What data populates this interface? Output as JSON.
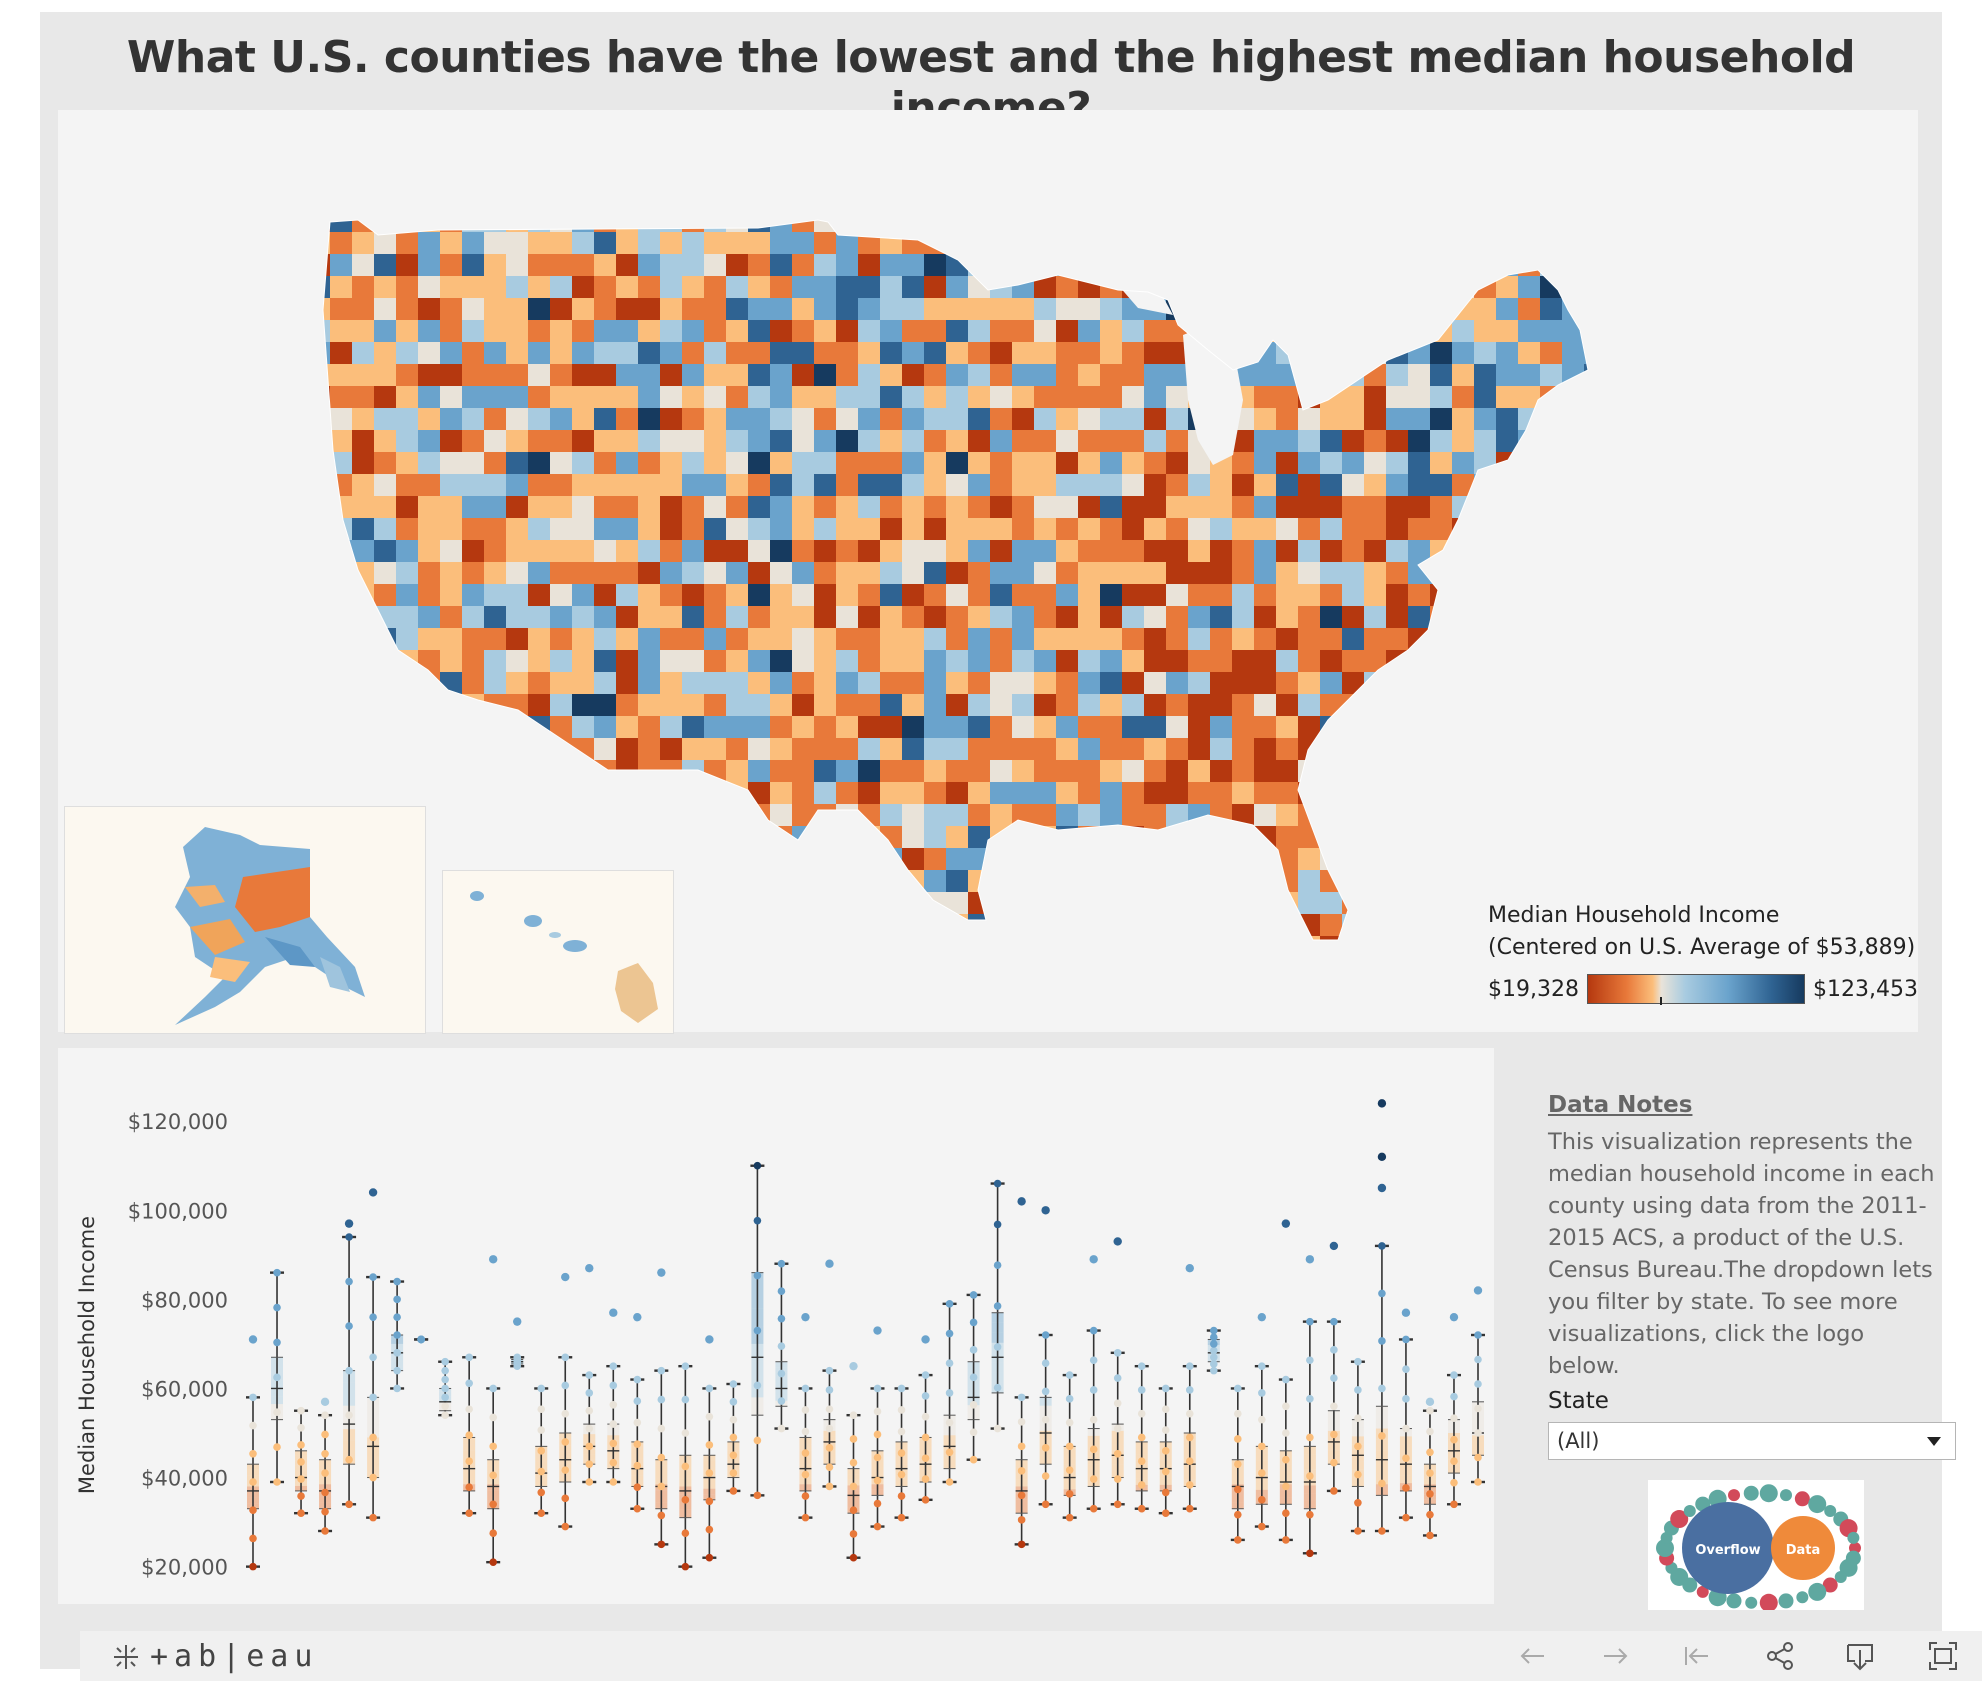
{
  "dashboard": {
    "title": "What U.S. counties have the lowest and the highest median household income?"
  },
  "legend": {
    "title_line1": "Median Household Income",
    "title_line2": "(Centered on U.S. Average of $53,889)",
    "min_label": "$19,328",
    "max_label": "$123,453",
    "colors": [
      "#b5380f",
      "#e8793a",
      "#fbbe7b",
      "#e9e3d9",
      "#a8cbe0",
      "#6aa3cc",
      "#2f6392",
      "#163a5f"
    ]
  },
  "chart_data": {
    "type": "boxplot",
    "ylabel": "Median Household Income",
    "ylim": [
      17000,
      127000
    ],
    "yticks": [
      20000,
      40000,
      60000,
      80000,
      100000,
      120000
    ],
    "ytick_labels": [
      "$20,000",
      "$40,000",
      "$60,000",
      "$80,000",
      "$100,000",
      "$120,000"
    ],
    "boxes": [
      {
        "min": 20000,
        "q1": 33000,
        "median": 37000,
        "q3": 43000,
        "max": 58000,
        "outliers": [
          71000
        ]
      },
      {
        "min": 39000,
        "q1": 53000,
        "median": 60000,
        "q3": 67000,
        "max": 86000,
        "outliers": []
      },
      {
        "min": 32000,
        "q1": 37000,
        "median": 40000,
        "q3": 46000,
        "max": 55000,
        "outliers": []
      },
      {
        "min": 28000,
        "q1": 33000,
        "median": 37000,
        "q3": 44000,
        "max": 54000,
        "outliers": [
          57000
        ]
      },
      {
        "min": 34000,
        "q1": 43000,
        "median": 52000,
        "q3": 64000,
        "max": 94000,
        "outliers": [
          97000
        ]
      },
      {
        "min": 31000,
        "q1": 40000,
        "median": 47000,
        "q3": 58000,
        "max": 85000,
        "outliers": [
          104000
        ]
      },
      {
        "min": 60000,
        "q1": 64000,
        "median": 68000,
        "q3": 72000,
        "max": 84000,
        "outliers": []
      },
      {
        "min": 71000,
        "q1": 71000,
        "median": 71000,
        "q3": 71000,
        "max": 71000,
        "outliers": []
      },
      {
        "min": 54000,
        "q1": 55000,
        "median": 57000,
        "q3": 60000,
        "max": 66000,
        "outliers": []
      },
      {
        "min": 32000,
        "q1": 37000,
        "median": 42000,
        "q3": 49000,
        "max": 67000,
        "outliers": []
      },
      {
        "min": 21000,
        "q1": 33000,
        "median": 38000,
        "q3": 44000,
        "max": 60000,
        "outliers": [
          89000
        ]
      },
      {
        "min": 65000,
        "q1": 65500,
        "median": 66000,
        "q3": 66500,
        "max": 67000,
        "outliers": [
          75000
        ]
      },
      {
        "min": 32000,
        "q1": 38000,
        "median": 41000,
        "q3": 47000,
        "max": 60000,
        "outliers": []
      },
      {
        "min": 29000,
        "q1": 39000,
        "median": 44000,
        "q3": 50000,
        "max": 67000,
        "outliers": [
          85000
        ]
      },
      {
        "min": 39000,
        "q1": 43000,
        "median": 47000,
        "q3": 52000,
        "max": 63000,
        "outliers": [
          87000
        ]
      },
      {
        "min": 39000,
        "q1": 42000,
        "median": 46000,
        "q3": 52000,
        "max": 65000,
        "outliers": [
          77000
        ]
      },
      {
        "min": 33000,
        "q1": 38000,
        "median": 42000,
        "q3": 48000,
        "max": 62000,
        "outliers": [
          76000
        ]
      },
      {
        "min": 25000,
        "q1": 33000,
        "median": 38000,
        "q3": 44000,
        "max": 64000,
        "outliers": [
          86000
        ]
      },
      {
        "min": 20000,
        "q1": 31000,
        "median": 37000,
        "q3": 45000,
        "max": 65000,
        "outliers": []
      },
      {
        "min": 22000,
        "q1": 35000,
        "median": 40000,
        "q3": 45000,
        "max": 60000,
        "outliers": [
          71000
        ]
      },
      {
        "min": 37000,
        "q1": 40000,
        "median": 43000,
        "q3": 48000,
        "max": 61000,
        "outliers": []
      },
      {
        "min": 36000,
        "q1": 54000,
        "median": 67000,
        "q3": 86000,
        "max": 110000,
        "outliers": []
      },
      {
        "min": 51000,
        "q1": 56000,
        "median": 60000,
        "q3": 66000,
        "max": 88000,
        "outliers": []
      },
      {
        "min": 31000,
        "q1": 37000,
        "median": 42000,
        "q3": 49000,
        "max": 60000,
        "outliers": [
          76000
        ]
      },
      {
        "min": 38000,
        "q1": 43000,
        "median": 48000,
        "q3": 53000,
        "max": 64000,
        "outliers": [
          88000
        ]
      },
      {
        "min": 22000,
        "q1": 32000,
        "median": 36000,
        "q3": 42000,
        "max": 54000,
        "outliers": [
          65000
        ]
      },
      {
        "min": 29000,
        "q1": 36000,
        "median": 40000,
        "q3": 46000,
        "max": 60000,
        "outliers": [
          73000
        ]
      },
      {
        "min": 31000,
        "q1": 38000,
        "median": 42000,
        "q3": 48000,
        "max": 60000,
        "outliers": []
      },
      {
        "min": 35000,
        "q1": 39000,
        "median": 43000,
        "q3": 49000,
        "max": 63000,
        "outliers": [
          71000
        ]
      },
      {
        "min": 39000,
        "q1": 42000,
        "median": 47000,
        "q3": 54000,
        "max": 79000,
        "outliers": []
      },
      {
        "min": 44000,
        "q1": 53000,
        "median": 58000,
        "q3": 66000,
        "max": 81000,
        "outliers": []
      },
      {
        "min": 51000,
        "q1": 59000,
        "median": 67000,
        "q3": 77000,
        "max": 106000,
        "outliers": []
      },
      {
        "min": 25000,
        "q1": 32000,
        "median": 37000,
        "q3": 44000,
        "max": 58000,
        "outliers": [
          102000
        ]
      },
      {
        "min": 34000,
        "q1": 43000,
        "median": 50000,
        "q3": 58000,
        "max": 72000,
        "outliers": [
          100000
        ]
      },
      {
        "min": 31000,
        "q1": 36000,
        "median": 40000,
        "q3": 47000,
        "max": 63000,
        "outliers": []
      },
      {
        "min": 33000,
        "q1": 38000,
        "median": 44000,
        "q3": 51000,
        "max": 73000,
        "outliers": [
          89000
        ]
      },
      {
        "min": 34000,
        "q1": 40000,
        "median": 45000,
        "q3": 52000,
        "max": 68000,
        "outliers": [
          93000
        ]
      },
      {
        "min": 33000,
        "q1": 37000,
        "median": 42000,
        "q3": 48000,
        "max": 65000,
        "outliers": []
      },
      {
        "min": 32000,
        "q1": 37000,
        "median": 42000,
        "q3": 48000,
        "max": 60000,
        "outliers": []
      },
      {
        "min": 33000,
        "q1": 38000,
        "median": 43000,
        "q3": 50000,
        "max": 65000,
        "outliers": [
          87000
        ]
      },
      {
        "min": 64000,
        "q1": 66000,
        "median": 68000,
        "q3": 71000,
        "max": 73000,
        "outliers": []
      },
      {
        "min": 26000,
        "q1": 33000,
        "median": 38000,
        "q3": 44000,
        "max": 60000,
        "outliers": []
      },
      {
        "min": 29000,
        "q1": 34000,
        "median": 40000,
        "q3": 47000,
        "max": 65000,
        "outliers": [
          76000
        ]
      },
      {
        "min": 26000,
        "q1": 34000,
        "median": 39000,
        "q3": 46000,
        "max": 62000,
        "outliers": [
          97000
        ]
      },
      {
        "min": 23000,
        "q1": 33000,
        "median": 39000,
        "q3": 47000,
        "max": 75000,
        "outliers": [
          89000
        ]
      },
      {
        "min": 37000,
        "q1": 43000,
        "median": 48000,
        "q3": 55000,
        "max": 75000,
        "outliers": [
          92000
        ]
      },
      {
        "min": 28000,
        "q1": 38000,
        "median": 45000,
        "q3": 53000,
        "max": 66000,
        "outliers": []
      },
      {
        "min": 28000,
        "q1": 36000,
        "median": 44000,
        "q3": 56000,
        "max": 92000,
        "outliers": [
          124000,
          112000,
          105000
        ]
      },
      {
        "min": 31000,
        "q1": 37000,
        "median": 43000,
        "q3": 51000,
        "max": 71000,
        "outliers": [
          77000
        ]
      },
      {
        "min": 27000,
        "q1": 34000,
        "median": 38000,
        "q3": 43000,
        "max": 55000,
        "outliers": [
          57000
        ]
      },
      {
        "min": 34000,
        "q1": 41000,
        "median": 46000,
        "q3": 53000,
        "max": 63000,
        "outliers": [
          76000
        ]
      },
      {
        "min": 39000,
        "q1": 45000,
        "median": 50000,
        "q3": 57000,
        "max": 72000,
        "outliers": [
          82000
        ]
      }
    ]
  },
  "notes": {
    "heading": "Data Notes",
    "body": "This visualization represents the median household income in each county using data from the 2011-2015 ACS, a product of the U.S. Census Bureau.The dropdown lets you filter by state. To see more visualizations, click the logo below."
  },
  "filter": {
    "label": "State",
    "selected": "(All)"
  },
  "logo": {
    "left_word": "Overflow",
    "right_word": "Data",
    "color_left": "#4a6fa1",
    "color_right": "#ef8a3a",
    "ring_colors": [
      "#5fa8a0",
      "#d24a5a"
    ]
  },
  "footer": {
    "brand": "+ab|eau",
    "icons": [
      "undo-icon",
      "redo-icon",
      "revert-icon",
      "share-icon",
      "download-icon",
      "fullscreen-icon"
    ]
  }
}
